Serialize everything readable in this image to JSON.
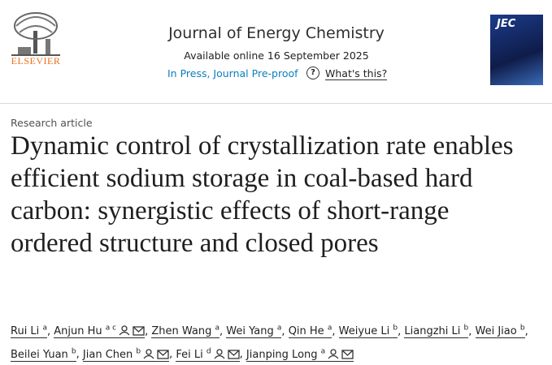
{
  "header": {
    "publisher": "ELSEVIER",
    "journal": "Journal of Energy Chemistry",
    "availability": "Available online 16 September 2025",
    "status": "In Press, Journal Pre-proof",
    "help_icon": "?",
    "help_link": "What's this?",
    "cover_title": "JEC"
  },
  "article": {
    "type": "Research article",
    "title": "Dynamic control of crystallization rate enables efficient sodium storage in coal-based hard carbon: synergistic effects of short-range ordered structure and closed pores",
    "author_separator": ",",
    "authors": [
      {
        "name": "Rui Li",
        "sup": "a",
        "contact": false
      },
      {
        "name": "Anjun Hu",
        "sup": "a c",
        "contact": true
      },
      {
        "name": "Zhen Wang",
        "sup": "a",
        "contact": false
      },
      {
        "name": "Wei Yang",
        "sup": "a",
        "contact": false
      },
      {
        "name": "Qin He",
        "sup": "a",
        "contact": false
      },
      {
        "name": "Weiyue Li",
        "sup": "b",
        "contact": false
      },
      {
        "name": "Liangzhi Li",
        "sup": "b",
        "contact": false
      },
      {
        "name": "Wei Jiao",
        "sup": "b",
        "contact": false
      },
      {
        "name": "Beilei Yuan",
        "sup": "b",
        "contact": false
      },
      {
        "name": "Jian Chen",
        "sup": "b",
        "contact": true
      },
      {
        "name": "Fei Li",
        "sup": "d",
        "contact": true
      },
      {
        "name": "Jianping Long",
        "sup": "a",
        "contact": true
      }
    ]
  }
}
